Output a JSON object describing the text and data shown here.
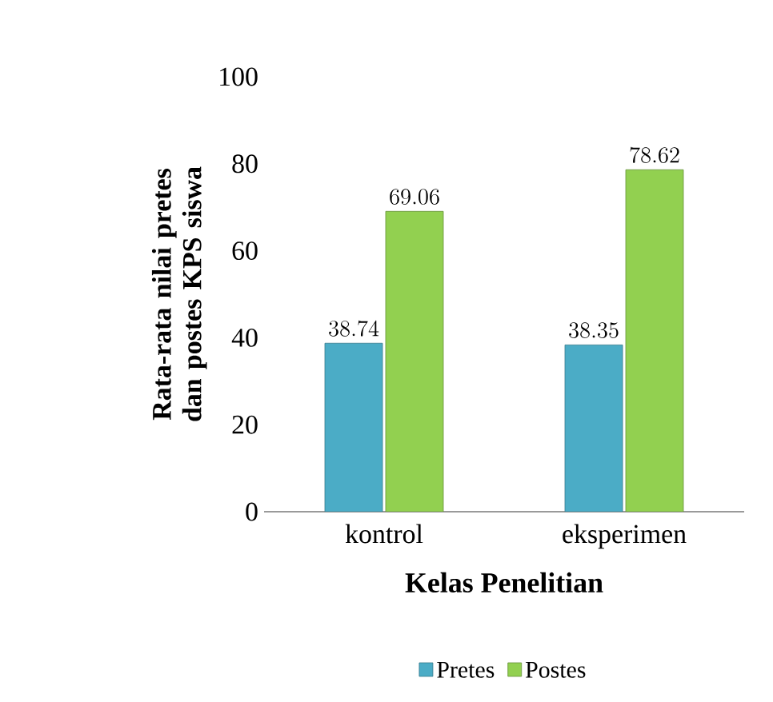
{
  "chart_data": {
    "type": "bar",
    "xlabel": "Kelas Penelitian",
    "ylabel": "Rata-rata nilai pretes dan postes KPS siswa",
    "categories": [
      "kontrol",
      "eksperimen"
    ],
    "series": [
      {
        "name": "Pretes",
        "color": "#4bacc6",
        "values": [
          38.74,
          38.35
        ]
      },
      {
        "name": "Postes",
        "color": "#92d050",
        "values": [
          69.06,
          78.62
        ]
      }
    ],
    "ylim": [
      0,
      100
    ],
    "yticks": [
      0,
      20,
      40,
      60,
      80,
      100
    ],
    "data_labels": true,
    "legend": "bottom",
    "grid": false
  }
}
